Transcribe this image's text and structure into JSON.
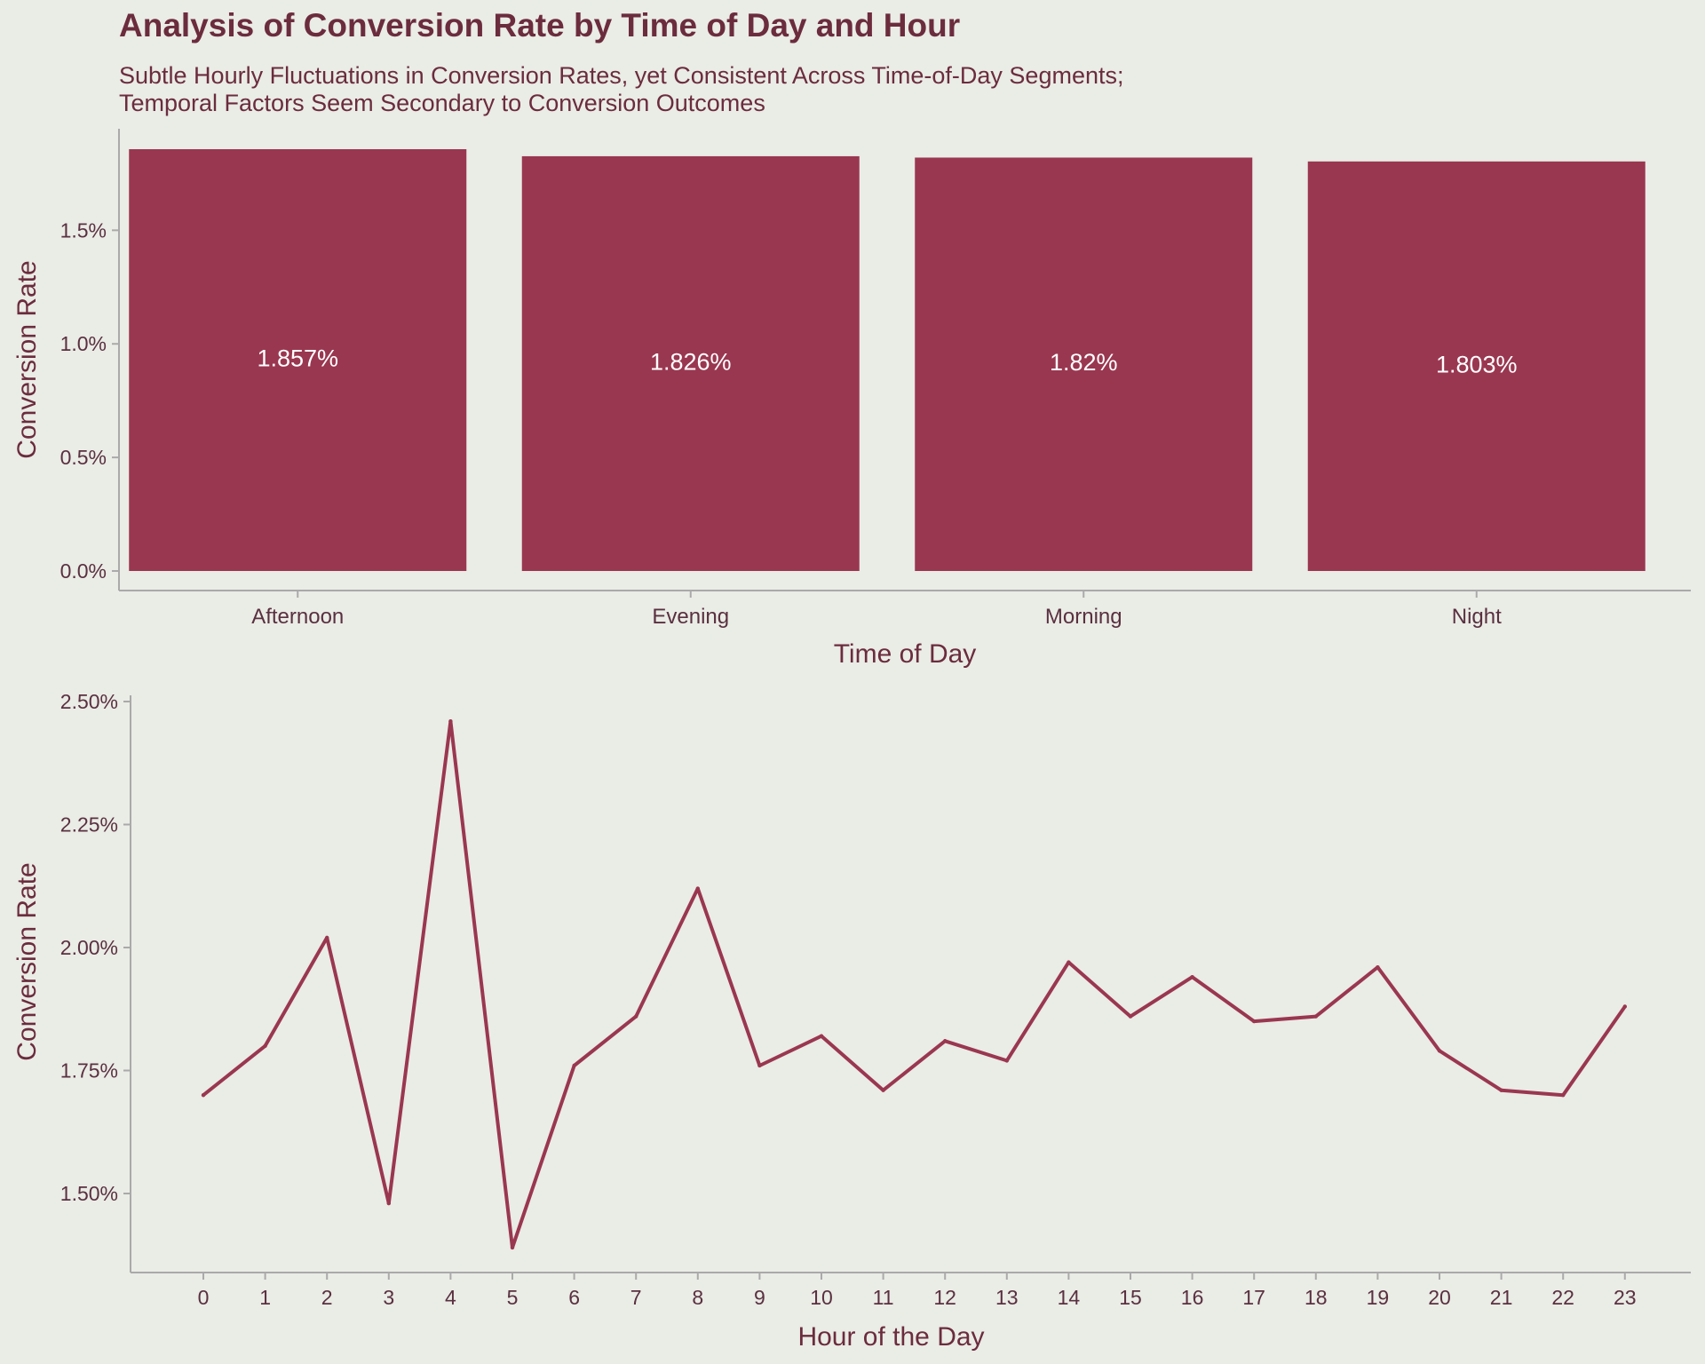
{
  "title": "Analysis of Conversion Rate by Time of Day and Hour",
  "subtitle_lines": [
    "Subtle Hourly Fluctuations in Conversion Rates, yet Consistent Across Time-of-Day Segments;",
    "Temporal Factors Seem Secondary to Conversion Outcomes"
  ],
  "colors": {
    "background": "#EAECE6",
    "accent": "#9A3750",
    "text": "#6B2C3E",
    "axis": "#AAAAAA"
  },
  "chart_data": [
    {
      "type": "bar",
      "xlabel": "Time of Day",
      "ylabel": "Conversion Rate",
      "categories": [
        "Afternoon",
        "Evening",
        "Morning",
        "Night"
      ],
      "values": [
        1.857,
        1.826,
        1.82,
        1.803
      ],
      "data_labels": [
        "1.857%",
        "1.826%",
        "1.82%",
        "1.803%"
      ],
      "ylim": [
        0,
        1.857
      ],
      "yticks": [
        0,
        0.5,
        1.0,
        1.5
      ],
      "ytick_labels": [
        "0.0%",
        "0.5%",
        "1.0%",
        "1.5%"
      ],
      "grid": false
    },
    {
      "type": "line",
      "xlabel": "Hour of the Day",
      "ylabel": "Conversion Rate",
      "x": [
        0,
        1,
        2,
        3,
        4,
        5,
        6,
        7,
        8,
        9,
        10,
        11,
        12,
        13,
        14,
        15,
        16,
        17,
        18,
        19,
        20,
        21,
        22,
        23
      ],
      "y": [
        1.7,
        1.8,
        2.02,
        1.48,
        2.46,
        1.39,
        1.76,
        1.86,
        2.12,
        1.76,
        1.82,
        1.71,
        1.81,
        1.77,
        1.97,
        1.86,
        1.94,
        1.85,
        1.86,
        1.96,
        1.79,
        1.71,
        1.7,
        1.88
      ],
      "ylim": [
        1.39,
        2.46
      ],
      "yticks": [
        1.5,
        1.75,
        2.0,
        2.25,
        2.5
      ],
      "ytick_labels": [
        "1.50%",
        "1.75%",
        "2.00%",
        "2.25%",
        "2.50%"
      ],
      "xticks": [
        0,
        1,
        2,
        3,
        4,
        5,
        6,
        7,
        8,
        9,
        10,
        11,
        12,
        13,
        14,
        15,
        16,
        17,
        18,
        19,
        20,
        21,
        22,
        23
      ],
      "xtick_labels": [
        "0",
        "1",
        "2",
        "3",
        "4",
        "5",
        "6",
        "7",
        "8",
        "9",
        "10",
        "11",
        "12",
        "13",
        "14",
        "15",
        "16",
        "17",
        "18",
        "19",
        "20",
        "21",
        "22",
        "23"
      ],
      "grid": false
    }
  ]
}
